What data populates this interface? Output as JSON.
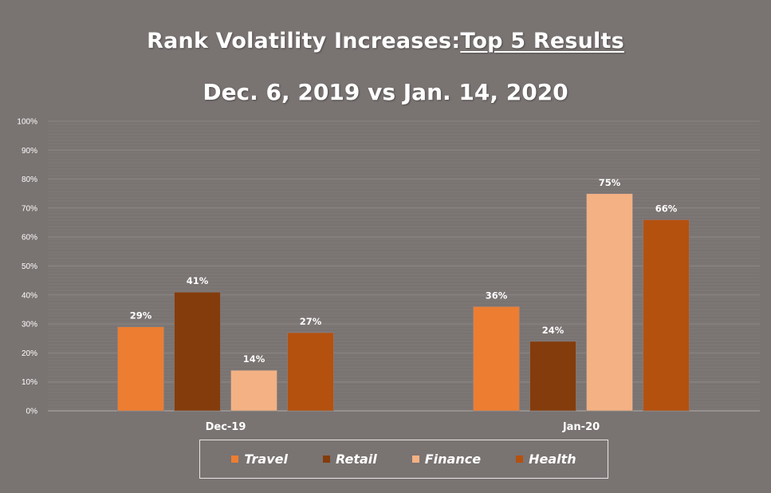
{
  "title": {
    "line1_prefix": "Rank Volatility Increases:",
    "line1_emph": "Top 5 Results",
    "line2": "Dec. 6, 2019 vs Jan. 14, 2020"
  },
  "colors": {
    "background": "#797372",
    "Travel": "#ED7D31",
    "Retail": "#843C0C",
    "Finance": "#F4B183",
    "Health": "#B4510F"
  },
  "chart_data": {
    "type": "bar",
    "title": "Rank Volatility Increases: Top 5 Results",
    "subtitle": "Dec. 6, 2019 vs Jan. 14, 2020",
    "categories": [
      "Dec-19",
      "Jan-20"
    ],
    "series": [
      {
        "name": "Travel",
        "values": [
          29,
          36
        ]
      },
      {
        "name": "Retail",
        "values": [
          41,
          24
        ]
      },
      {
        "name": "Finance",
        "values": [
          14,
          75
        ]
      },
      {
        "name": "Health",
        "values": [
          27,
          66
        ]
      }
    ],
    "value_suffix": "%",
    "ylim": [
      0,
      100
    ],
    "yticks": [
      "0%",
      "10%",
      "20%",
      "30%",
      "40%",
      "50%",
      "60%",
      "70%",
      "80%",
      "90%",
      "100%"
    ],
    "xlabel": "",
    "ylabel": "",
    "legend_position": "bottom",
    "grid": true
  }
}
